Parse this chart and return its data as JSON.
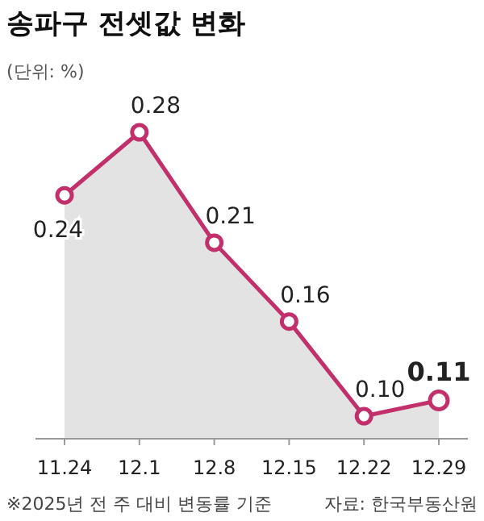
{
  "chart_data": {
    "type": "area",
    "title": "송파구 전셋값 변화",
    "subtitle": "(단위: %)",
    "categories": [
      "11.24",
      "12.1",
      "12.8",
      "12.15",
      "12.22",
      "12.29"
    ],
    "series": [
      {
        "color": "#c2306b",
        "values": [
          0.24,
          0.28,
          0.21,
          0.16,
          0.1,
          0.11
        ],
        "value_labels": [
          "0.24",
          "0.28",
          "0.21",
          "0.16",
          "0.10",
          "0.11"
        ]
      }
    ],
    "tick_labels": "x",
    "marker": "circle",
    "annotations": [
      "※2025년 전 주 대비 변동률 기준",
      "자료: 한국부동산원"
    ]
  }
}
